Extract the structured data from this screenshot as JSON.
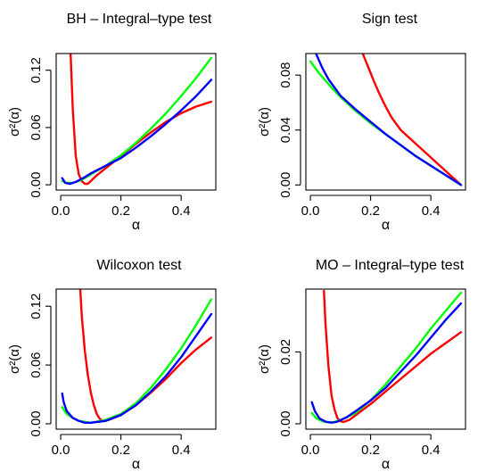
{
  "chart_data": [
    {
      "type": "line",
      "title": "BH – Integral–type test",
      "xlabel": "α",
      "ylabel": "σ²(α)",
      "xlim": [
        -0.015,
        0.515
      ],
      "ylim": [
        -0.0055,
        0.1375
      ],
      "xticks": [
        0.0,
        0.2,
        0.4
      ],
      "xtick_labels": [
        "0.0",
        "0.2",
        "0.4"
      ],
      "yticks": [
        0.0,
        0.06,
        0.12
      ],
      "ytick_labels": [
        "0.00",
        "0.06",
        "0.12"
      ],
      "grid": false,
      "series": [
        {
          "color": "#ff0000",
          "points": [
            [
              0.033,
              0.137
            ],
            [
              0.04,
              0.08
            ],
            [
              0.05,
              0.03
            ],
            [
              0.06,
              0.011
            ],
            [
              0.07,
              0.004
            ],
            [
              0.08,
              0.001
            ],
            [
              0.09,
              0.001
            ],
            [
              0.1,
              0.004
            ],
            [
              0.12,
              0.01
            ],
            [
              0.16,
              0.02
            ],
            [
              0.2,
              0.03
            ],
            [
              0.25,
              0.043
            ],
            [
              0.3,
              0.055
            ],
            [
              0.35,
              0.066
            ],
            [
              0.4,
              0.075
            ],
            [
              0.45,
              0.082
            ],
            [
              0.5,
              0.087
            ]
          ]
        },
        {
          "color": "#00ff00",
          "points": [
            [
              0.005,
              0.004
            ],
            [
              0.02,
              0.002
            ],
            [
              0.04,
              0.002
            ],
            [
              0.06,
              0.004
            ],
            [
              0.08,
              0.007
            ],
            [
              0.1,
              0.011
            ],
            [
              0.15,
              0.02
            ],
            [
              0.2,
              0.031
            ],
            [
              0.25,
              0.044
            ],
            [
              0.3,
              0.059
            ],
            [
              0.35,
              0.075
            ],
            [
              0.4,
              0.093
            ],
            [
              0.45,
              0.112
            ],
            [
              0.5,
              0.133
            ]
          ]
        },
        {
          "color": "#0000ff",
          "points": [
            [
              0.005,
              0.007
            ],
            [
              0.015,
              0.002
            ],
            [
              0.03,
              0.001
            ],
            [
              0.05,
              0.003
            ],
            [
              0.08,
              0.008
            ],
            [
              0.1,
              0.012
            ],
            [
              0.15,
              0.02
            ],
            [
              0.2,
              0.028
            ],
            [
              0.25,
              0.039
            ],
            [
              0.3,
              0.051
            ],
            [
              0.35,
              0.064
            ],
            [
              0.4,
              0.078
            ],
            [
              0.45,
              0.093
            ],
            [
              0.5,
              0.11
            ]
          ]
        }
      ]
    },
    {
      "type": "line",
      "title": "Sign test",
      "xlabel": "α",
      "ylabel": "σ²(α)",
      "xlim": [
        -0.015,
        0.515
      ],
      "ylim": [
        -0.0037,
        0.0957
      ],
      "xticks": [
        0.0,
        0.2,
        0.4
      ],
      "xtick_labels": [
        "0.0",
        "0.2",
        "0.4"
      ],
      "yticks": [
        0.0,
        0.04,
        0.08
      ],
      "ytick_labels": [
        "0.00",
        "0.04",
        "0.08"
      ],
      "grid": false,
      "series": [
        {
          "color": "#ff0000",
          "points": [
            [
              0.175,
              0.095
            ],
            [
              0.19,
              0.087
            ],
            [
              0.21,
              0.076
            ],
            [
              0.23,
              0.066
            ],
            [
              0.25,
              0.057
            ],
            [
              0.27,
              0.049
            ],
            [
              0.3,
              0.04
            ],
            [
              0.35,
              0.03
            ],
            [
              0.4,
              0.02
            ],
            [
              0.45,
              0.01
            ],
            [
              0.5,
              0.0
            ]
          ]
        },
        {
          "color": "#00ff00",
          "points": [
            [
              0.0,
              0.09
            ],
            [
              0.03,
              0.081
            ],
            [
              0.07,
              0.071
            ],
            [
              0.1,
              0.064
            ],
            [
              0.15,
              0.054
            ],
            [
              0.2,
              0.045
            ],
            [
              0.25,
              0.037
            ],
            [
              0.3,
              0.029
            ],
            [
              0.35,
              0.021
            ],
            [
              0.4,
              0.014
            ],
            [
              0.45,
              0.007
            ],
            [
              0.5,
              0.0
            ]
          ]
        },
        {
          "color": "#0000ff",
          "points": [
            [
              0.02,
              0.095
            ],
            [
              0.04,
              0.085
            ],
            [
              0.06,
              0.077
            ],
            [
              0.08,
              0.071
            ],
            [
              0.1,
              0.065
            ],
            [
              0.15,
              0.055
            ],
            [
              0.2,
              0.046
            ],
            [
              0.25,
              0.037
            ],
            [
              0.3,
              0.029
            ],
            [
              0.35,
              0.021
            ],
            [
              0.4,
              0.014
            ],
            [
              0.45,
              0.007
            ],
            [
              0.5,
              0.0
            ]
          ]
        }
      ]
    },
    {
      "type": "line",
      "title": "Wilcoxon test",
      "xlabel": "α",
      "ylabel": "σ²(α)",
      "xlim": [
        -0.015,
        0.515
      ],
      "ylim": [
        -0.0055,
        0.1375
      ],
      "xticks": [
        0.0,
        0.2,
        0.4
      ],
      "xtick_labels": [
        "0.0",
        "0.2",
        "0.4"
      ],
      "yticks": [
        0.0,
        0.06,
        0.12
      ],
      "ytick_labels": [
        "0.00",
        "0.06",
        "0.12"
      ],
      "grid": false,
      "series": [
        {
          "color": "#ff0000",
          "points": [
            [
              0.065,
              0.137
            ],
            [
              0.07,
              0.11
            ],
            [
              0.08,
              0.075
            ],
            [
              0.09,
              0.05
            ],
            [
              0.1,
              0.032
            ],
            [
              0.11,
              0.019
            ],
            [
              0.12,
              0.01
            ],
            [
              0.13,
              0.005
            ],
            [
              0.14,
              0.003
            ],
            [
              0.16,
              0.004
            ],
            [
              0.2,
              0.009
            ],
            [
              0.25,
              0.019
            ],
            [
              0.3,
              0.032
            ],
            [
              0.35,
              0.046
            ],
            [
              0.4,
              0.062
            ],
            [
              0.45,
              0.076
            ],
            [
              0.5,
              0.088
            ]
          ]
        },
        {
          "color": "#00ff00",
          "points": [
            [
              0.005,
              0.017
            ],
            [
              0.02,
              0.01
            ],
            [
              0.04,
              0.006
            ],
            [
              0.06,
              0.003
            ],
            [
              0.08,
              0.002
            ],
            [
              0.1,
              0.001
            ],
            [
              0.15,
              0.004
            ],
            [
              0.2,
              0.01
            ],
            [
              0.25,
              0.021
            ],
            [
              0.3,
              0.037
            ],
            [
              0.35,
              0.056
            ],
            [
              0.4,
              0.077
            ],
            [
              0.45,
              0.101
            ],
            [
              0.5,
              0.127
            ]
          ]
        },
        {
          "color": "#0000ff",
          "points": [
            [
              0.005,
              0.031
            ],
            [
              0.01,
              0.022
            ],
            [
              0.02,
              0.013
            ],
            [
              0.04,
              0.006
            ],
            [
              0.06,
              0.003
            ],
            [
              0.08,
              0.001
            ],
            [
              0.1,
              0.001
            ],
            [
              0.15,
              0.003
            ],
            [
              0.2,
              0.009
            ],
            [
              0.25,
              0.019
            ],
            [
              0.3,
              0.033
            ],
            [
              0.35,
              0.049
            ],
            [
              0.4,
              0.068
            ],
            [
              0.45,
              0.09
            ],
            [
              0.5,
              0.112
            ]
          ]
        }
      ]
    },
    {
      "type": "line",
      "title": "MO – Integral–type test",
      "xlabel": "α",
      "ylabel": "σ²(α)",
      "xlim": [
        -0.015,
        0.515
      ],
      "ylim": [
        -0.0015,
        0.0375
      ],
      "xticks": [
        0.0,
        0.2,
        0.4
      ],
      "xtick_labels": [
        "0.0",
        "0.2",
        "0.4"
      ],
      "yticks": [
        0.0,
        0.02
      ],
      "ytick_labels": [
        "0.00",
        "0.02"
      ],
      "grid": false,
      "series": [
        {
          "color": "#ff0000",
          "points": [
            [
              0.045,
              0.037
            ],
            [
              0.05,
              0.028
            ],
            [
              0.06,
              0.016
            ],
            [
              0.07,
              0.008
            ],
            [
              0.08,
              0.004
            ],
            [
              0.09,
              0.0015
            ],
            [
              0.1,
              0.0007
            ],
            [
              0.11,
              0.0005
            ],
            [
              0.13,
              0.0011
            ],
            [
              0.16,
              0.003
            ],
            [
              0.2,
              0.0055
            ],
            [
              0.25,
              0.009
            ],
            [
              0.3,
              0.0125
            ],
            [
              0.35,
              0.016
            ],
            [
              0.4,
              0.0195
            ],
            [
              0.45,
              0.0225
            ],
            [
              0.5,
              0.0255
            ]
          ]
        },
        {
          "color": "#00ff00",
          "points": [
            [
              0.005,
              0.003
            ],
            [
              0.02,
              0.0015
            ],
            [
              0.04,
              0.0007
            ],
            [
              0.06,
              0.0004
            ],
            [
              0.08,
              0.0005
            ],
            [
              0.1,
              0.001
            ],
            [
              0.15,
              0.003
            ],
            [
              0.2,
              0.0065
            ],
            [
              0.25,
              0.011
            ],
            [
              0.3,
              0.016
            ],
            [
              0.35,
              0.021
            ],
            [
              0.4,
              0.0265
            ],
            [
              0.45,
              0.0315
            ],
            [
              0.5,
              0.0365
            ]
          ]
        },
        {
          "color": "#0000ff",
          "points": [
            [
              0.005,
              0.006
            ],
            [
              0.015,
              0.0035
            ],
            [
              0.03,
              0.0015
            ],
            [
              0.05,
              0.0006
            ],
            [
              0.07,
              0.0003
            ],
            [
              0.09,
              0.0006
            ],
            [
              0.12,
              0.0018
            ],
            [
              0.15,
              0.0035
            ],
            [
              0.2,
              0.0065
            ],
            [
              0.25,
              0.01
            ],
            [
              0.3,
              0.0145
            ],
            [
              0.35,
              0.019
            ],
            [
              0.4,
              0.024
            ],
            [
              0.45,
              0.029
            ],
            [
              0.5,
              0.0335
            ]
          ]
        }
      ]
    }
  ]
}
